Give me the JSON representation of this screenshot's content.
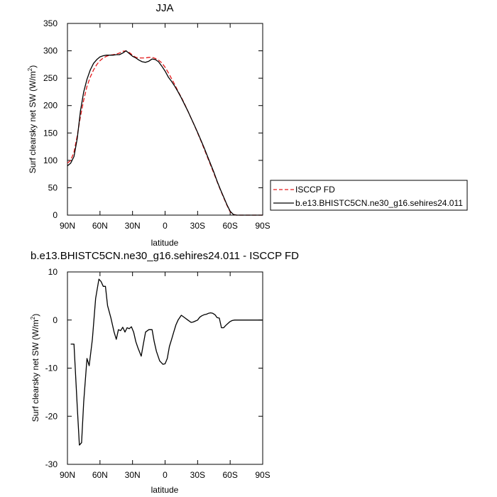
{
  "chart_data": [
    {
      "type": "line",
      "title": "JJA",
      "xlabel": "latitude",
      "ylabel": "Surf clearsky net SW (W/m",
      "ylabel_sup": "2",
      "ylabel_close": ")",
      "xlim": [
        90,
        -90
      ],
      "ylim": [
        0,
        350
      ],
      "x_ticks": [
        90,
        60,
        30,
        0,
        -30,
        -60,
        -90
      ],
      "x_tick_labels": [
        "90N",
        "60N",
        "30N",
        "0",
        "30S",
        "60S",
        "90S"
      ],
      "y_ticks": [
        0,
        50,
        100,
        150,
        200,
        250,
        300,
        350
      ],
      "y_tick_labels": [
        "0",
        "50",
        "100",
        "150",
        "200",
        "250",
        "300",
        "350"
      ],
      "grid": false,
      "legend_position": "right",
      "series": [
        {
          "name": "ISCCP FD",
          "color": "#e31a1c",
          "dash": "dashed",
          "x": [
            90,
            87,
            84,
            81,
            78,
            75,
            72,
            69,
            66,
            63,
            60,
            57,
            54,
            51,
            48,
            45,
            42,
            39,
            36,
            33,
            30,
            27,
            24,
            21,
            18,
            15,
            12,
            9,
            6,
            3,
            0,
            -3,
            -6,
            -9,
            -12,
            -15,
            -18,
            -21,
            -24,
            -27,
            -30,
            -33,
            -36,
            -39,
            -42,
            -45,
            -48,
            -51,
            -54,
            -57,
            -60,
            -63,
            -66,
            -69,
            -72,
            -75,
            -78,
            -81,
            -84,
            -87,
            -90
          ],
          "y": [
            95,
            100,
            115,
            145,
            180,
            210,
            235,
            252,
            265,
            275,
            282,
            287,
            290,
            292,
            293,
            294,
            296,
            299,
            300,
            297,
            292,
            288,
            287,
            287,
            287,
            288,
            288,
            286,
            283,
            278,
            270,
            260,
            249,
            238,
            226,
            215,
            203,
            190,
            177,
            164,
            150,
            136,
            121,
            106,
            91,
            76,
            61,
            46,
            32,
            18,
            6,
            1,
            0,
            0,
            0,
            0,
            0,
            0,
            0,
            0,
            0
          ]
        },
        {
          "name": "b.e13.BHISTC5CN.ne30_g16.sehires24.011",
          "color": "#000000",
          "dash": "solid",
          "x": [
            90,
            87,
            84,
            81,
            78,
            75,
            72,
            69,
            66,
            63,
            60,
            57,
            54,
            51,
            48,
            45,
            42,
            39,
            36,
            33,
            30,
            27,
            24,
            21,
            18,
            15,
            12,
            9,
            6,
            3,
            0,
            -3,
            -6,
            -9,
            -12,
            -15,
            -18,
            -21,
            -24,
            -27,
            -30,
            -33,
            -36,
            -39,
            -42,
            -45,
            -48,
            -51,
            -54,
            -57,
            -60,
            -63,
            -66,
            -69,
            -72,
            -75,
            -78,
            -81,
            -84,
            -87,
            -90
          ],
          "y": [
            90,
            95,
            107,
            140,
            190,
            225,
            248,
            265,
            277,
            284,
            289,
            291,
            292,
            292,
            292,
            293,
            293,
            296,
            300,
            295,
            290,
            287,
            283,
            280,
            279,
            281,
            285,
            284,
            280,
            272,
            263,
            252,
            244,
            235,
            225,
            214,
            202,
            190,
            177,
            164,
            151,
            137,
            123,
            108,
            93,
            78,
            62,
            47,
            33,
            19,
            7,
            1,
            0,
            0,
            0,
            0,
            0,
            0,
            0,
            0,
            0
          ]
        }
      ]
    },
    {
      "type": "line",
      "title": "b.e13.BHISTC5CN.ne30_g16.sehires24.011 - ISCCP FD",
      "xlabel": "latitude",
      "ylabel": "Surf clearsky net SW (W/m",
      "ylabel_sup": "2",
      "ylabel_close": ")",
      "xlim": [
        90,
        -90
      ],
      "ylim": [
        -30,
        10
      ],
      "x_ticks": [
        90,
        60,
        30,
        0,
        -30,
        -60,
        -90
      ],
      "x_tick_labels": [
        "90N",
        "60N",
        "30N",
        "0",
        "30S",
        "60S",
        "90S"
      ],
      "y_ticks": [
        -30,
        -20,
        -10,
        0,
        10
      ],
      "y_tick_labels": [
        "-30",
        "-20",
        "-10",
        "0",
        "10"
      ],
      "grid": false,
      "series": [
        {
          "color": "#000000",
          "dash": "solid",
          "x": [
            87,
            84,
            81,
            79,
            77,
            75,
            72,
            70,
            67,
            64,
            61,
            59,
            57,
            55,
            53,
            50,
            47,
            45,
            43,
            41,
            39,
            37,
            35,
            33,
            31,
            29,
            27,
            25,
            22,
            20,
            18,
            15,
            12,
            10,
            8,
            5,
            2,
            0,
            -2,
            -4,
            -6,
            -8,
            -10,
            -12,
            -15,
            -18,
            -21,
            -24,
            -26,
            -28,
            -30,
            -32,
            -34,
            -36,
            -38,
            -40,
            -42,
            -44,
            -46,
            -48,
            -50,
            -52,
            -54,
            -56,
            -58,
            -60,
            -62,
            -64,
            -66,
            -69,
            -72,
            -75,
            -78,
            -81,
            -84,
            -87,
            -90
          ],
          "y": [
            -5,
            -5,
            -18,
            -26,
            -25.5,
            -17,
            -8,
            -9.5,
            -4,
            4.5,
            8.5,
            8,
            7,
            7,
            3,
            0.5,
            -2.5,
            -4,
            -2,
            -2.2,
            -1.5,
            -2.5,
            -1.6,
            -1.8,
            -1.4,
            -2.5,
            -4.5,
            -5.8,
            -7.5,
            -5,
            -2.5,
            -2,
            -2,
            -4.5,
            -6.5,
            -8.5,
            -9.2,
            -9.1,
            -8,
            -5.5,
            -4,
            -2.5,
            -1,
            0,
            1,
            0.5,
            0,
            -0.5,
            -0.4,
            -0.2,
            0,
            0.6,
            0.9,
            1.1,
            1.2,
            1.4,
            1.5,
            1.4,
            1.1,
            0.5,
            0.4,
            -1.6,
            -1.6,
            -1.1,
            -0.7,
            -0.3,
            -0.1,
            0,
            0,
            0,
            0,
            0,
            0,
            0,
            0,
            0,
            0
          ]
        }
      ]
    }
  ]
}
